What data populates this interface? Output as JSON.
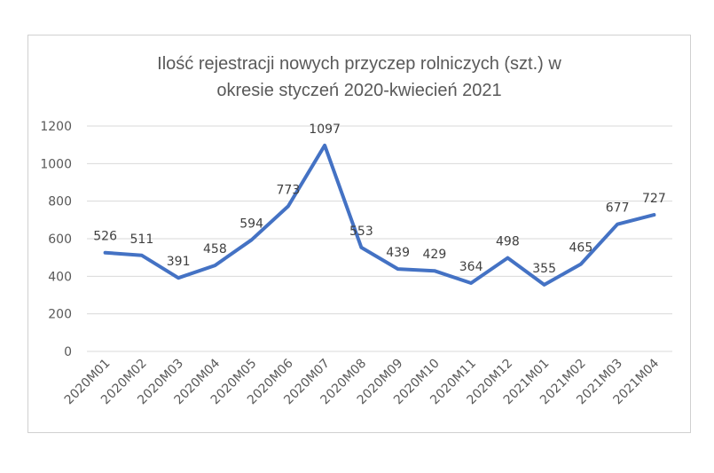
{
  "chart_data": {
    "type": "line",
    "title_line1": "Ilość rejestracji nowych przyczep rolniczych (szt.) w",
    "title_line2": "okresie styczeń 2020-kwiecień 2021",
    "categories": [
      "2020M01",
      "2020M02",
      "2020M03",
      "2020M04",
      "2020M05",
      "2020M06",
      "2020M07",
      "2020M08",
      "2020M09",
      "2020M10",
      "2020M11",
      "2020M12",
      "2021M01",
      "2021M02",
      "2021M03",
      "2021M04"
    ],
    "values": [
      526,
      511,
      391,
      458,
      594,
      773,
      1097,
      553,
      439,
      429,
      364,
      498,
      355,
      465,
      677,
      727
    ],
    "yticks": [
      0,
      200,
      400,
      600,
      800,
      1000,
      1200
    ],
    "ylim": [
      0,
      1200
    ],
    "grid": true,
    "legend": "none",
    "line_color": "#4472c4"
  }
}
